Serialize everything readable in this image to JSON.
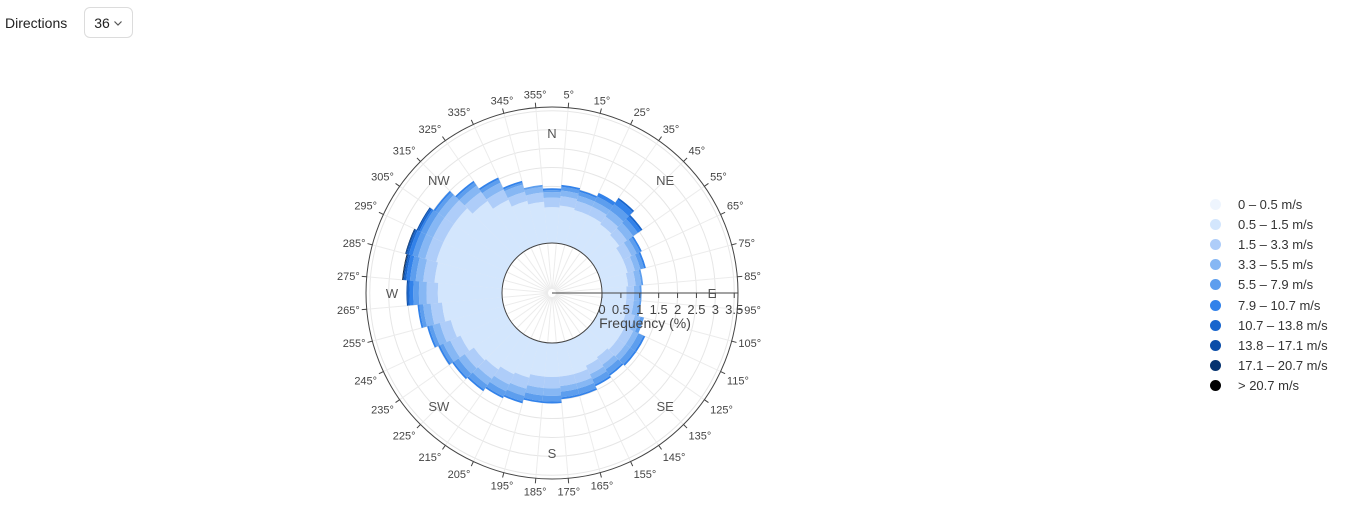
{
  "toolbar": {
    "label": "Directions",
    "selected": "36"
  },
  "chart_data": {
    "type": "polar-bar",
    "title": "",
    "radial_axis": {
      "label": "Frequency (%)",
      "range": [
        0,
        3.6
      ],
      "ticks": [
        0,
        0.5,
        1,
        1.5,
        2,
        2.5,
        3,
        3.5
      ],
      "tick_labels": [
        "0",
        "0.5",
        "1",
        "1.5",
        "2",
        "2.5",
        "3",
        "3.5"
      ]
    },
    "angular_axis": {
      "direction": "clockwise",
      "rotation": "N at top",
      "cardinal_labels": [
        {
          "label": "N",
          "angle": 0
        },
        {
          "label": "NE",
          "angle": 45
        },
        {
          "label": "E",
          "angle": 90
        },
        {
          "label": "SE",
          "angle": 135
        },
        {
          "label": "S",
          "angle": 180
        },
        {
          "label": "SW",
          "angle": 225
        },
        {
          "label": "W",
          "angle": 270
        },
        {
          "label": "NW",
          "angle": 315
        }
      ],
      "degree_labels": [
        "5°",
        "15°",
        "25°",
        "35°",
        "45°",
        "55°",
        "65°",
        "75°",
        "85°",
        "95°",
        "105°",
        "115°",
        "125°",
        "135°",
        "145°",
        "155°",
        "165°",
        "175°",
        "185°",
        "195°",
        "205°",
        "215°",
        "225°",
        "235°",
        "245°",
        "255°",
        "265°",
        "275°",
        "285°",
        "295°",
        "305°",
        "315°",
        "325°",
        "335°",
        "345°",
        "355°"
      ]
    },
    "categories": [
      "0°",
      "10°",
      "20°",
      "30°",
      "40°",
      "50°",
      "60°",
      "70°",
      "80°",
      "90°",
      "100°",
      "110°",
      "120°",
      "130°",
      "140°",
      "150°",
      "160°",
      "170°",
      "180°",
      "190°",
      "200°",
      "210°",
      "220°",
      "230°",
      "240°",
      "250°",
      "260°",
      "270°",
      "280°",
      "290°",
      "300°",
      "310°",
      "320°",
      "330°",
      "340°",
      "350°"
    ],
    "legend": {
      "placement": "right"
    },
    "series": [
      {
        "name": "0 – 0.5 m/s",
        "color": "#eef5fe",
        "values": [
          0.0,
          0.0,
          0.0,
          0.0,
          0.0,
          0.0,
          0.0,
          0.0,
          0.0,
          0.0,
          0.0,
          0.0,
          0.0,
          0.0,
          0.0,
          0.0,
          0.0,
          0.0,
          0.0,
          0.0,
          0.0,
          0.0,
          0.0,
          0.0,
          0.0,
          0.0,
          0.0,
          0.0,
          0.0,
          0.0,
          0.0,
          0.0,
          0.0,
          0.0,
          0.0,
          0.0
        ]
      },
      {
        "name": "0.5 – 1.5 m/s",
        "color": "#d3e6fd",
        "values": [
          0.95,
          1.0,
          0.95,
          0.95,
          0.9,
          0.85,
          0.75,
          0.75,
          0.7,
          0.65,
          0.65,
          0.7,
          0.8,
          0.8,
          0.75,
          0.8,
          0.9,
          0.9,
          0.9,
          0.9,
          1.0,
          1.05,
          1.15,
          1.2,
          1.35,
          1.45,
          1.6,
          1.7,
          1.8,
          1.85,
          1.85,
          1.85,
          1.65,
          1.4,
          1.2,
          1.1
        ]
      },
      {
        "name": "1.5 – 3.3 m/s",
        "color": "#aecdf9",
        "values": [
          0.25,
          0.25,
          0.25,
          0.25,
          0.25,
          0.25,
          0.25,
          0.2,
          0.2,
          0.2,
          0.2,
          0.25,
          0.25,
          0.25,
          0.25,
          0.25,
          0.25,
          0.25,
          0.3,
          0.3,
          0.3,
          0.3,
          0.3,
          0.3,
          0.3,
          0.3,
          0.3,
          0.3,
          0.3,
          0.3,
          0.3,
          0.3,
          0.3,
          0.3,
          0.25,
          0.25
        ]
      },
      {
        "name": "3.3 – 5.5 m/s",
        "color": "#86b7f4",
        "values": [
          0.15,
          0.15,
          0.15,
          0.15,
          0.2,
          0.2,
          0.15,
          0.15,
          0.15,
          0.15,
          0.15,
          0.15,
          0.15,
          0.15,
          0.15,
          0.15,
          0.15,
          0.15,
          0.2,
          0.2,
          0.2,
          0.2,
          0.2,
          0.2,
          0.2,
          0.2,
          0.2,
          0.2,
          0.2,
          0.2,
          0.2,
          0.2,
          0.2,
          0.2,
          0.2,
          0.15
        ]
      },
      {
        "name": "5.5 – 7.9 m/s",
        "color": "#5d9eee",
        "values": [
          0.05,
          0.1,
          0.1,
          0.15,
          0.2,
          0.15,
          0.1,
          0.1,
          0.05,
          0.05,
          0.05,
          0.1,
          0.15,
          0.15,
          0.15,
          0.15,
          0.15,
          0.15,
          0.15,
          0.15,
          0.15,
          0.15,
          0.15,
          0.15,
          0.1,
          0.1,
          0.1,
          0.15,
          0.15,
          0.15,
          0.15,
          0.1,
          0.1,
          0.1,
          0.05,
          0.05
        ]
      },
      {
        "name": "7.9 – 10.7 m/s",
        "color": "#3282ea",
        "values": [
          0.05,
          0.05,
          0.05,
          0.1,
          0.15,
          0.1,
          0.05,
          0.05,
          0.0,
          0.0,
          0.0,
          0.0,
          0.05,
          0.05,
          0.05,
          0.05,
          0.05,
          0.05,
          0.05,
          0.05,
          0.05,
          0.05,
          0.05,
          0.05,
          0.05,
          0.05,
          0.05,
          0.1,
          0.1,
          0.1,
          0.05,
          0.05,
          0.05,
          0.05,
          0.05,
          0.0
        ]
      },
      {
        "name": "10.7 – 13.8 m/s",
        "color": "#1865cd",
        "values": [
          0.0,
          0.0,
          0.0,
          0.0,
          0.05,
          0.05,
          0.0,
          0.0,
          0.0,
          0.0,
          0.0,
          0.0,
          0.0,
          0.0,
          0.0,
          0.0,
          0.0,
          0.0,
          0.0,
          0.0,
          0.0,
          0.0,
          0.0,
          0.0,
          0.0,
          0.0,
          0.0,
          0.05,
          0.05,
          0.05,
          0.05,
          0.0,
          0.0,
          0.0,
          0.0,
          0.0
        ]
      },
      {
        "name": "13.8 – 17.1 m/s",
        "color": "#0b4da8",
        "values": [
          0.0,
          0.0,
          0.0,
          0.0,
          0.0,
          0.0,
          0.0,
          0.0,
          0.0,
          0.0,
          0.0,
          0.0,
          0.0,
          0.0,
          0.0,
          0.0,
          0.0,
          0.0,
          0.0,
          0.0,
          0.0,
          0.0,
          0.0,
          0.0,
          0.0,
          0.0,
          0.0,
          0.03,
          0.03,
          0.03,
          0.03,
          0.0,
          0.0,
          0.0,
          0.0,
          0.0
        ]
      },
      {
        "name": "17.1 – 20.7 m/s",
        "color": "#06336f",
        "values": [
          0.0,
          0.0,
          0.0,
          0.0,
          0.0,
          0.0,
          0.0,
          0.0,
          0.0,
          0.0,
          0.0,
          0.0,
          0.0,
          0.0,
          0.0,
          0.0,
          0.0,
          0.0,
          0.0,
          0.0,
          0.0,
          0.0,
          0.0,
          0.0,
          0.0,
          0.0,
          0.0,
          0.0,
          0.02,
          0.02,
          0.0,
          0.0,
          0.0,
          0.0,
          0.0,
          0.0
        ]
      },
      {
        "name": "> 20.7 m/s",
        "color": "#000000",
        "values": [
          0.0,
          0.0,
          0.0,
          0.0,
          0.0,
          0.0,
          0.0,
          0.0,
          0.0,
          0.0,
          0.0,
          0.0,
          0.0,
          0.0,
          0.0,
          0.0,
          0.0,
          0.0,
          0.0,
          0.0,
          0.0,
          0.0,
          0.0,
          0.0,
          0.0,
          0.0,
          0.0,
          0.0,
          0.01,
          0.0,
          0.0,
          0.0,
          0.0,
          0.0,
          0.0,
          0.0
        ]
      }
    ]
  }
}
